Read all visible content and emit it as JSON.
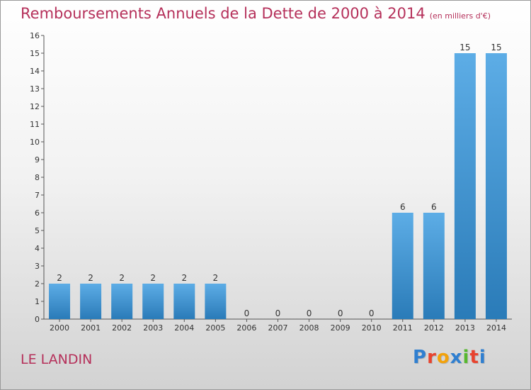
{
  "page": {
    "title": "Remboursements Annuels de la Dette de 2000 à 2014",
    "unit": "(en milliers d'€)",
    "commune": "LE LANDIN",
    "logo_text": "Proxiti",
    "colors": {
      "title": "#b5305a",
      "bar_light": "#5dade6",
      "bar_dark": "#2a7bb8",
      "logo": [
        "#2f7fd0",
        "#e8432e",
        "#f2a20c",
        "#2f7fd0",
        "#57b82f",
        "#e8432e",
        "#2f7fd0"
      ]
    }
  },
  "chart_data": {
    "type": "bar",
    "title": "Remboursements Annuels de la Dette de 2000 à 2014",
    "subtitle": "(en milliers d'€)",
    "xlabel": "",
    "ylabel": "",
    "ylim": [
      0,
      16
    ],
    "yticks": [
      0,
      1,
      2,
      3,
      4,
      5,
      6,
      7,
      8,
      9,
      10,
      11,
      12,
      13,
      14,
      15,
      16
    ],
    "grid": false,
    "legend": "none",
    "categories": [
      "2000",
      "2001",
      "2002",
      "2003",
      "2004",
      "2005",
      "2006",
      "2007",
      "2008",
      "2009",
      "2010",
      "2011",
      "2012",
      "2013",
      "2014"
    ],
    "values": [
      2,
      2,
      2,
      2,
      2,
      2,
      0,
      0,
      0,
      0,
      0,
      6,
      6,
      15,
      15
    ]
  }
}
